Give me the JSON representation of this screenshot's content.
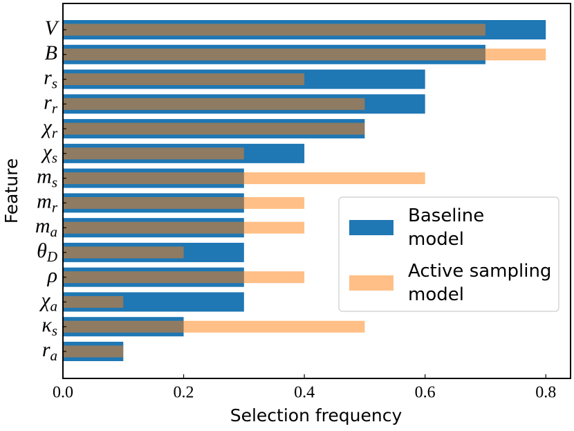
{
  "chart_data": {
    "type": "barh_overlap",
    "xlabel": "Selection frequency",
    "ylabel": "Feature",
    "categories": [
      {
        "base": "V"
      },
      {
        "base": "B"
      },
      {
        "base": "r",
        "sub": "s"
      },
      {
        "base": "r",
        "sub": "r"
      },
      {
        "base": "χ",
        "sub": "r"
      },
      {
        "base": "χ",
        "sub": "s"
      },
      {
        "base": "m",
        "sub": "s"
      },
      {
        "base": "m",
        "sub": "r"
      },
      {
        "base": "m",
        "sub": "a"
      },
      {
        "base": "θ",
        "sub": "D"
      },
      {
        "base": "ρ"
      },
      {
        "base": "χ",
        "sub": "a"
      },
      {
        "base": "κ",
        "sub": "s"
      },
      {
        "base": "r",
        "sub": "a"
      }
    ],
    "series": [
      {
        "name": "Baseline\nmodel",
        "color": "#1f77b4",
        "alpha": 1,
        "values": [
          0.8,
          0.7,
          0.6,
          0.6,
          0.5,
          0.4,
          0.3,
          0.3,
          0.3,
          0.3,
          0.3,
          0.3,
          0.2,
          0.1
        ]
      },
      {
        "name": "Active sampling\nmodel",
        "color": "#ff7f0e",
        "alpha": 0.5,
        "values": [
          0.7,
          0.8,
          0.4,
          0.5,
          0.5,
          0.3,
          0.6,
          0.4,
          0.4,
          0.2,
          0.4,
          0.1,
          0.5,
          0.1
        ]
      }
    ],
    "xlim": [
      0,
      0.841
    ],
    "xticks": [
      {
        "value": 0,
        "label": "0.0"
      },
      0.2,
      0.4,
      0.6,
      0.8
    ],
    "legend": "center right"
  }
}
